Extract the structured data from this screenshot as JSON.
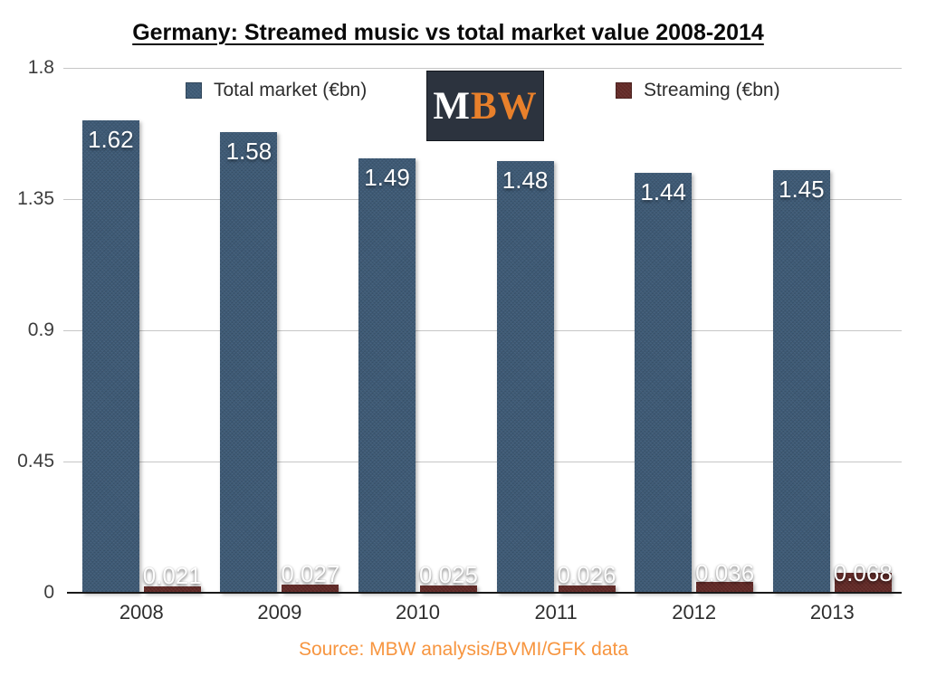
{
  "title": "Germany: Streamed music vs total market value 2008-2014",
  "logo": {
    "m": "M",
    "bw": "BW",
    "bg_color": "#2c333e",
    "m_color": "#ffffff",
    "bw_color": "#e8802b"
  },
  "legend": [
    {
      "label": "Total market (€bn)",
      "color": "#3f5c78"
    },
    {
      "label": "Streaming (€bn)",
      "color": "#652b28"
    }
  ],
  "source": {
    "text": "Source: MBW analysis/BVMI/GFK data",
    "color": "#f7953f"
  },
  "chart_data": {
    "type": "bar",
    "categories": [
      "2008",
      "2009",
      "2010",
      "2011",
      "2012",
      "2013"
    ],
    "series": [
      {
        "name": "Total market (€bn)",
        "color": "#3f5c78",
        "values": [
          1.62,
          1.58,
          1.49,
          1.48,
          1.44,
          1.45
        ],
        "labels": [
          "1.62",
          "1.58",
          "1.49",
          "1.48",
          "1.44",
          "1.45"
        ]
      },
      {
        "name": "Streaming (€bn)",
        "color": "#652b28",
        "values": [
          0.021,
          0.027,
          0.025,
          0.026,
          0.036,
          0.068
        ],
        "labels": [
          "0.021",
          "0.027",
          "0.025",
          "0.026",
          "0.036",
          "0.068"
        ]
      }
    ],
    "ylim": [
      0,
      1.8
    ],
    "ytick_values": [
      0,
      0.45,
      0.9,
      1.35,
      1.8
    ],
    "ytick_labels": [
      "0",
      "0.45",
      "0.9",
      "1.35",
      "1.8"
    ],
    "grid": true,
    "legend_position": "top",
    "xlabel": "",
    "ylabel": ""
  }
}
